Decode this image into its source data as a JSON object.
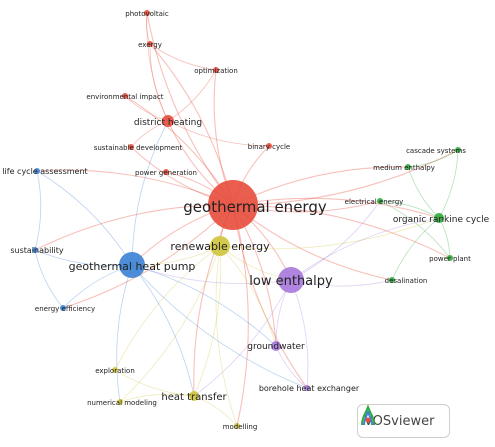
{
  "app": {
    "brand": "VOSviewer"
  },
  "colors": {
    "cluster_red": "#e74c3c",
    "cluster_blue": "#3b82d4",
    "cluster_green": "#2eab3a",
    "cluster_yellow": "#cfc53b",
    "cluster_purple": "#a778dc"
  },
  "map": {
    "nodes": [
      {
        "id": "geothermal energy",
        "label": "geothermal energy",
        "cluster": "red",
        "weight": 10
      },
      {
        "id": "district heating",
        "label": "district heating",
        "cluster": "red",
        "weight": 3
      },
      {
        "id": "photovoltaic",
        "label": "photovoltaic",
        "cluster": "red",
        "weight": 1
      },
      {
        "id": "exergy",
        "label": "exergy",
        "cluster": "red",
        "weight": 1
      },
      {
        "id": "optimization",
        "label": "optimization",
        "cluster": "red",
        "weight": 1
      },
      {
        "id": "environmental impact",
        "label": "environmental impact",
        "cluster": "red",
        "weight": 1
      },
      {
        "id": "sustainable development",
        "label": "sustainable development",
        "cluster": "red",
        "weight": 1
      },
      {
        "id": "binary cycle",
        "label": "binary cycle",
        "cluster": "red",
        "weight": 1
      },
      {
        "id": "power generation",
        "label": "power generation",
        "cluster": "red",
        "weight": 1
      },
      {
        "id": "geothermal heat pump",
        "label": "geothermal heat pump",
        "cluster": "blue",
        "weight": 6
      },
      {
        "id": "life cycle assessment",
        "label": "life cycle assessment",
        "cluster": "blue",
        "weight": 1
      },
      {
        "id": "sustainability",
        "label": "sustainability",
        "cluster": "blue",
        "weight": 1
      },
      {
        "id": "energy efficiency",
        "label": "energy efficiency",
        "cluster": "blue",
        "weight": 1
      },
      {
        "id": "organic rankine cycle",
        "label": "organic rankine cycle",
        "cluster": "green",
        "weight": 2
      },
      {
        "id": "cascade systems",
        "label": "cascade systems",
        "cluster": "green",
        "weight": 1
      },
      {
        "id": "medium enthalpy",
        "label": "medium enthalpy",
        "cluster": "green",
        "weight": 1
      },
      {
        "id": "electrical energy",
        "label": "electrical energy",
        "cluster": "green",
        "weight": 1
      },
      {
        "id": "power plant",
        "label": "power plant",
        "cluster": "green",
        "weight": 1
      },
      {
        "id": "desalination",
        "label": "desalination",
        "cluster": "green",
        "weight": 1
      },
      {
        "id": "renewable energy",
        "label": "renewable energy",
        "cluster": "yellow",
        "weight": 5
      },
      {
        "id": "heat transfer",
        "label": "heat transfer",
        "cluster": "yellow",
        "weight": 2
      },
      {
        "id": "exploration",
        "label": "exploration",
        "cluster": "yellow",
        "weight": 1
      },
      {
        "id": "numerical modeling",
        "label": "numerical modeling",
        "cluster": "yellow",
        "weight": 1
      },
      {
        "id": "modelling",
        "label": "modelling",
        "cluster": "yellow",
        "weight": 1
      },
      {
        "id": "low enthalpy",
        "label": "low enthalpy",
        "cluster": "purple",
        "weight": 6
      },
      {
        "id": "groundwater",
        "label": "groundwater",
        "cluster": "purple",
        "weight": 2
      },
      {
        "id": "borehole heat exchanger",
        "label": "borehole heat exchanger",
        "cluster": "purple",
        "weight": 1
      }
    ],
    "links": [
      [
        "geothermal energy",
        "district heating"
      ],
      [
        "geothermal energy",
        "renewable energy"
      ],
      [
        "geothermal energy",
        "low enthalpy"
      ],
      [
        "geothermal energy",
        "geothermal heat pump"
      ],
      [
        "geothermal energy",
        "organic rankine cycle"
      ],
      [
        "geothermal energy",
        "electrical energy"
      ],
      [
        "geothermal energy",
        "binary cycle"
      ],
      [
        "geothermal energy",
        "power generation"
      ],
      [
        "geothermal energy",
        "sustainable development"
      ],
      [
        "geothermal energy",
        "environmental impact"
      ],
      [
        "geothermal energy",
        "optimization"
      ],
      [
        "geothermal energy",
        "exergy"
      ],
      [
        "geothermal energy",
        "photovoltaic"
      ],
      [
        "geothermal energy",
        "heat transfer"
      ],
      [
        "geothermal energy",
        "groundwater"
      ],
      [
        "geothermal energy",
        "desalination"
      ],
      [
        "geothermal energy",
        "medium enthalpy"
      ],
      [
        "geothermal energy",
        "life cycle assessment"
      ],
      [
        "geothermal energy",
        "power plant"
      ],
      [
        "geothermal energy",
        "cascade systems"
      ],
      [
        "geothermal energy",
        "modelling"
      ],
      [
        "geothermal energy",
        "borehole heat exchanger"
      ],
      [
        "geothermal energy",
        "energy efficiency"
      ],
      [
        "geothermal energy",
        "sustainability"
      ],
      [
        "district heating",
        "exergy"
      ],
      [
        "district heating",
        "optimization"
      ],
      [
        "district heating",
        "environmental impact"
      ],
      [
        "district heating",
        "binary cycle"
      ],
      [
        "district heating",
        "photovoltaic"
      ],
      [
        "district heating",
        "sustainable development"
      ],
      [
        "exergy",
        "photovoltaic"
      ],
      [
        "exergy",
        "optimization"
      ],
      [
        "renewable energy",
        "geothermal heat pump"
      ],
      [
        "renewable energy",
        "low enthalpy"
      ],
      [
        "renewable energy",
        "heat transfer"
      ],
      [
        "renewable energy",
        "exploration"
      ],
      [
        "renewable energy",
        "numerical modeling"
      ],
      [
        "renewable energy",
        "modelling"
      ],
      [
        "renewable energy",
        "groundwater"
      ],
      [
        "renewable energy",
        "organic rankine cycle"
      ],
      [
        "low enthalpy",
        "geothermal heat pump"
      ],
      [
        "low enthalpy",
        "groundwater"
      ],
      [
        "low enthalpy",
        "borehole heat exchanger"
      ],
      [
        "low enthalpy",
        "desalination"
      ],
      [
        "low enthalpy",
        "organic rankine cycle"
      ],
      [
        "low enthalpy",
        "electrical energy"
      ],
      [
        "low enthalpy",
        "heat transfer"
      ],
      [
        "geothermal heat pump",
        "life cycle assessment"
      ],
      [
        "geothermal heat pump",
        "sustainability"
      ],
      [
        "geothermal heat pump",
        "energy efficiency"
      ],
      [
        "geothermal heat pump",
        "groundwater"
      ],
      [
        "geothermal heat pump",
        "borehole heat exchanger"
      ],
      [
        "geothermal heat pump",
        "heat transfer"
      ],
      [
        "geothermal heat pump",
        "numerical modeling"
      ],
      [
        "geothermal heat pump",
        "district heating"
      ],
      [
        "organic rankine cycle",
        "cascade systems"
      ],
      [
        "organic rankine cycle",
        "medium enthalpy"
      ],
      [
        "organic rankine cycle",
        "electrical energy"
      ],
      [
        "organic rankine cycle",
        "power plant"
      ],
      [
        "organic rankine cycle",
        "desalination"
      ],
      [
        "electrical energy",
        "power plant"
      ],
      [
        "medium enthalpy",
        "cascade systems"
      ],
      [
        "heat transfer",
        "modelling"
      ],
      [
        "heat transfer",
        "numerical modeling"
      ],
      [
        "heat transfer",
        "exploration"
      ],
      [
        "groundwater",
        "borehole heat exchanger"
      ],
      [
        "life cycle assessment",
        "sustainability"
      ],
      [
        "sustainability",
        "energy efficiency"
      ]
    ]
  }
}
